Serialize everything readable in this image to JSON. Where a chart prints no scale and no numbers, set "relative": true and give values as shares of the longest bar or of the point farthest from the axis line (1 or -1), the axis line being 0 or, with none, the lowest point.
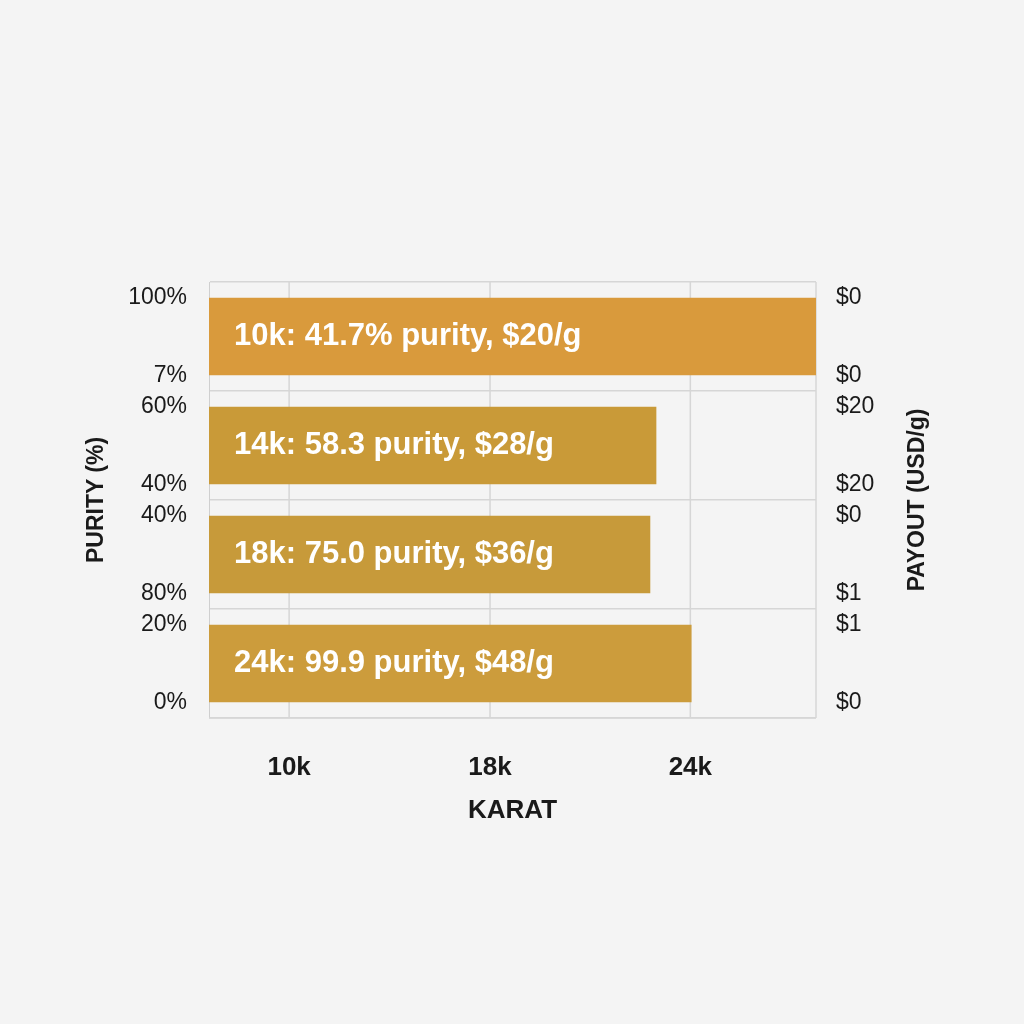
{
  "chart_data": {
    "type": "bar",
    "orientation": "horizontal",
    "relative": true,
    "xlabel": "KARAT",
    "ylabel": "PURITY (%)",
    "y2label": "PAYOUT (USD/g)",
    "categories": [
      null,
      null,
      null,
      null
    ],
    "values": [
      1,
      0.737,
      0.727,
      0.795
    ],
    "colors": [
      "#d99a3c",
      "#c99a38",
      "#c79a3a",
      "#cc9c3c"
    ],
    "grid": true,
    "annotations": [
      "10k: 41.7% purity, $20/g",
      "14k: 58.3 purity, $28/g",
      "18k: 75.0 purity, $36/g",
      "24k: 99.9 purity, $48/g",
      "100%",
      "7%",
      "60%",
      "40%",
      "40%",
      "80%",
      "20%",
      "0%",
      "$0",
      "$0",
      "$20",
      "$20",
      "$0",
      "$1",
      "$1",
      "$0",
      "10k",
      "18k",
      "24k"
    ]
  }
}
